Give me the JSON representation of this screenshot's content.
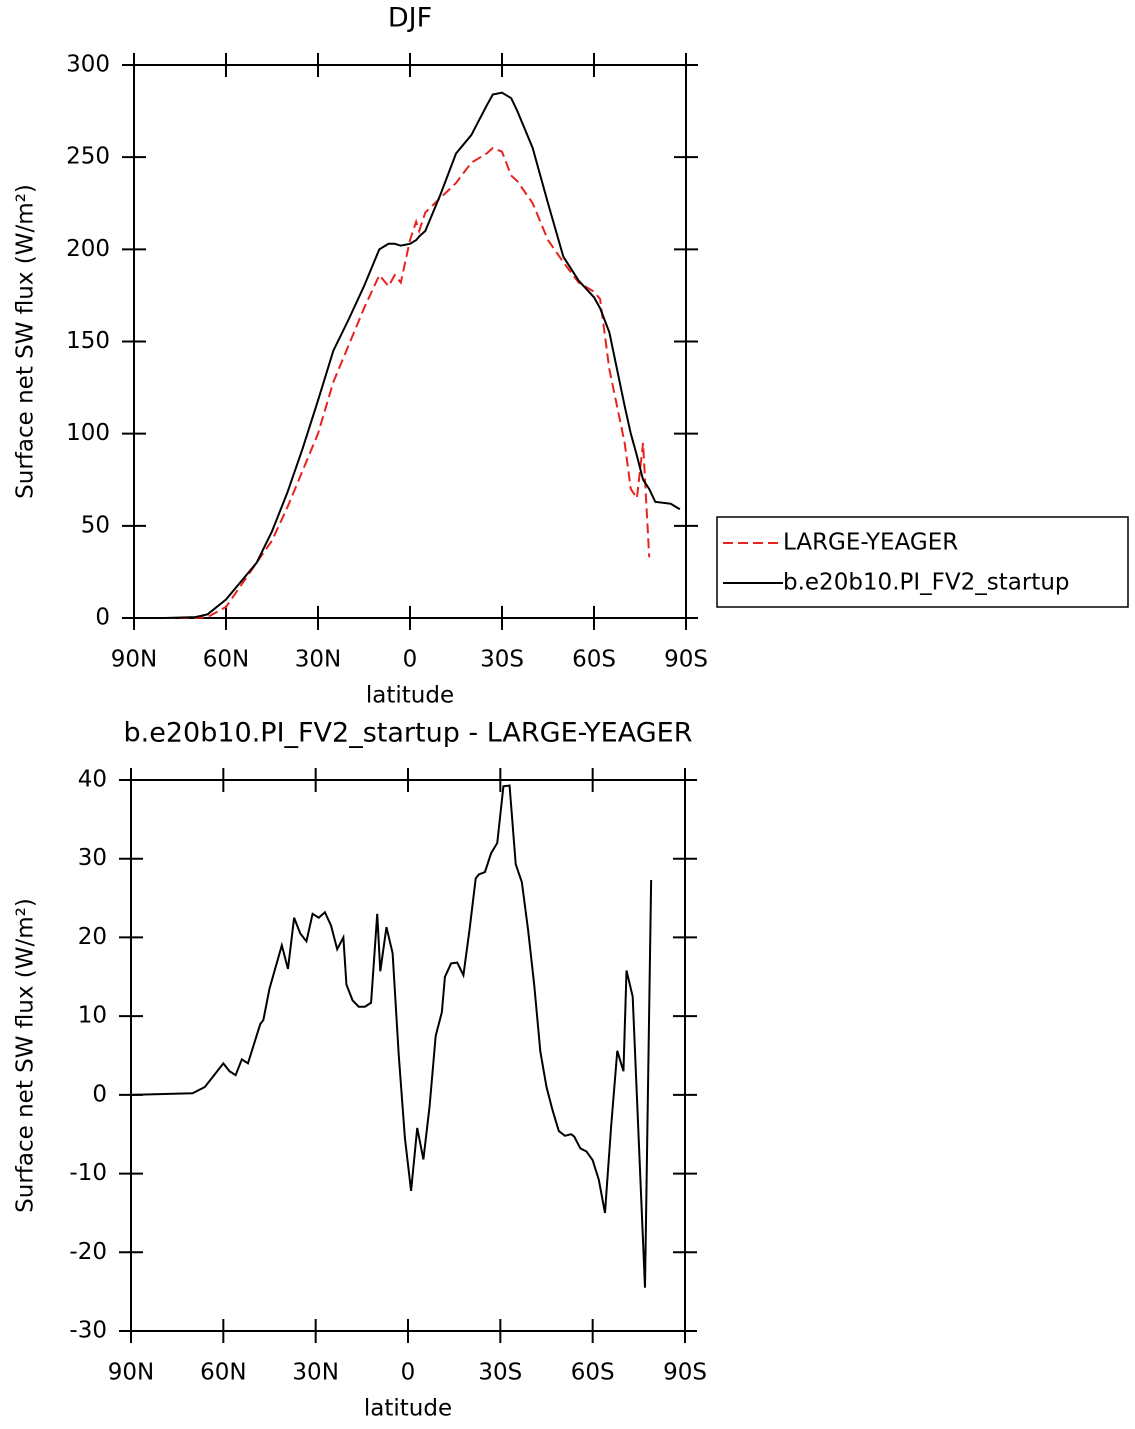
{
  "chart_data": [
    {
      "type": "line",
      "title": "DJF",
      "x_label": "latitude",
      "y_label": "Surface net SW flux (W/m²)",
      "x": [
        90,
        80,
        70,
        66,
        60,
        55,
        50,
        45,
        40,
        35,
        30,
        25,
        20,
        15,
        10,
        7,
        5,
        3,
        0,
        -2,
        -3,
        -5,
        -10,
        -15,
        -20,
        -25,
        -27,
        -30,
        -33,
        -35,
        -40,
        -45,
        -50,
        -55,
        -60,
        -62,
        -65,
        -70,
        -72,
        -74,
        -76,
        -78,
        -80,
        -85,
        -88
      ],
      "series": [
        {
          "name": "LARGE-YEAGER",
          "color": "#e8221e",
          "dash": true,
          "values": [
            0,
            0,
            0,
            0.5,
            6,
            18,
            30,
            42,
            60,
            80,
            100,
            128,
            148,
            168,
            186,
            180,
            186,
            182,
            205,
            215,
            210,
            220,
            228,
            236,
            247,
            252,
            255,
            253,
            240,
            237,
            225,
            205,
            193,
            182,
            177,
            173,
            135,
            95,
            70,
            65,
            95,
            33,
            null,
            null,
            null
          ]
        },
        {
          "name": "b.e20b10.PI_FV2_startup",
          "color": "#000000",
          "dash": false,
          "values": [
            0,
            0,
            0.5,
            2,
            10,
            20,
            30,
            47,
            68,
            92,
            118,
            145,
            162,
            180,
            200,
            203,
            203,
            202,
            203,
            205,
            207,
            210,
            230,
            252,
            262,
            278,
            284,
            285,
            282,
            275,
            255,
            225,
            196,
            183,
            174,
            168,
            155,
            115,
            100,
            88,
            75,
            70,
            63,
            62,
            59
          ]
        }
      ],
      "xlim": [
        90,
        -90
      ],
      "xticks": [
        {
          "value": 90,
          "label": "90N"
        },
        {
          "value": 60,
          "label": "60N"
        },
        {
          "value": 30,
          "label": "30N"
        },
        0,
        {
          "value": -30,
          "label": "30S"
        },
        {
          "value": -60,
          "label": "60S"
        },
        {
          "value": -90,
          "label": "90S"
        }
      ],
      "ylim": [
        0,
        300
      ],
      "yticks": [
        0,
        50,
        100,
        150,
        200,
        250,
        300
      ],
      "legend": "right"
    },
    {
      "type": "line",
      "title": "b.e20b10.PI_FV2_startup - LARGE-YEAGER",
      "x_label": "latitude",
      "y_label": "Surface net SW flux (W/m²)",
      "x": [
        90,
        70,
        66,
        62,
        60,
        58,
        56,
        54,
        52,
        48,
        47,
        45,
        41,
        39,
        37,
        35,
        33,
        31,
        29,
        27,
        25,
        23,
        21,
        20,
        18,
        16,
        14,
        12,
        10,
        9,
        7,
        5,
        3,
        1,
        -1,
        -3,
        -5,
        -7,
        -9,
        -11,
        -12,
        -14,
        -16,
        -18,
        -20,
        -22,
        -23,
        -25,
        -27,
        -29,
        -31,
        -33,
        -35,
        -37,
        -39,
        -41,
        -43,
        -45,
        -47,
        -49,
        -51,
        -53,
        -54,
        -56,
        -58,
        -60,
        -62,
        -64,
        -66,
        -68,
        -70,
        -71,
        -73,
        -77,
        -79
      ],
      "series": [
        {
          "name": "b.e20b10.PI_FV2_startup - LARGE-YEAGER",
          "color": "#000000",
          "dash": false,
          "values": [
            0,
            0.2,
            1,
            3,
            4,
            3,
            2.5,
            4.5,
            4,
            9,
            9.5,
            13.5,
            19,
            16,
            22.5,
            20.5,
            19.5,
            23,
            22.5,
            23.2,
            21.5,
            18.5,
            20,
            14,
            12,
            11.2,
            11.2,
            11.7,
            23,
            15.7,
            21.3,
            18,
            5,
            -5.5,
            -12.2,
            -4.2,
            -8.2,
            -1.5,
            7.5,
            10.5,
            15,
            16.7,
            16.8,
            15.2,
            21,
            27.5,
            28,
            28.3,
            30.7,
            32,
            39.2,
            39.3,
            29.3,
            27,
            21,
            14,
            5.5,
            1,
            -2,
            -4.6,
            -5.2,
            -5,
            -5.3,
            -6.8,
            -7.2,
            -8.3,
            -10.8,
            -15,
            -4,
            5.6,
            3,
            15.8,
            12.5,
            -24.5,
            27.3
          ]
        }
      ],
      "xlim": [
        90,
        -90
      ],
      "xticks": [
        {
          "value": 90,
          "label": "90N"
        },
        {
          "value": 60,
          "label": "60N"
        },
        {
          "value": 30,
          "label": "30N"
        },
        0,
        {
          "value": -30,
          "label": "30S"
        },
        {
          "value": -60,
          "label": "60S"
        },
        {
          "value": -90,
          "label": "90S"
        }
      ],
      "ylim": [
        -30,
        40
      ],
      "yticks": [
        -30,
        -20,
        -10,
        0,
        10,
        20,
        30,
        40
      ]
    }
  ]
}
